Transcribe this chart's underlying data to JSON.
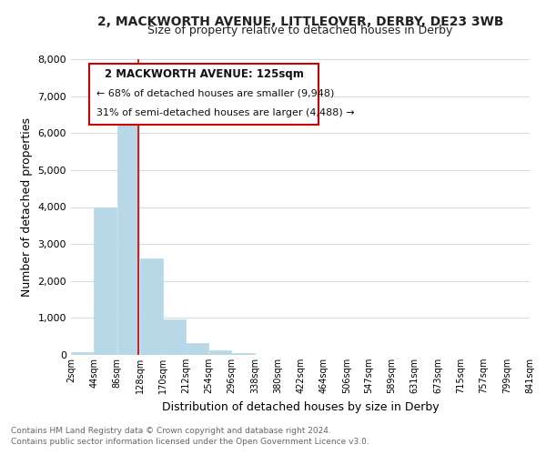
{
  "title": "2, MACKWORTH AVENUE, LITTLEOVER, DERBY, DE23 3WB",
  "subtitle": "Size of property relative to detached houses in Derby",
  "xlabel": "Distribution of detached houses by size in Derby",
  "ylabel": "Number of detached properties",
  "footnote1": "Contains HM Land Registry data © Crown copyright and database right 2024.",
  "footnote2": "Contains public sector information licensed under the Open Government Licence v3.0.",
  "bin_edges": [
    2,
    44,
    86,
    128,
    170,
    212,
    254,
    296,
    338,
    380,
    422,
    464,
    506,
    547,
    589,
    631,
    673,
    715,
    757,
    799,
    841
  ],
  "bar_heights": [
    70,
    4000,
    6600,
    2600,
    950,
    330,
    130,
    50,
    0,
    0,
    0,
    0,
    0,
    0,
    0,
    0,
    0,
    0,
    0,
    0
  ],
  "bar_color": "#b8d8e8",
  "property_line_x": 125,
  "property_line_color": "#cc0000",
  "ylim": [
    0,
    8000
  ],
  "yticks": [
    0,
    1000,
    2000,
    3000,
    4000,
    5000,
    6000,
    7000,
    8000
  ],
  "annotation_title": "2 MACKWORTH AVENUE: 125sqm",
  "annotation_line1": "← 68% of detached houses are smaller (9,948)",
  "annotation_line2": "31% of semi-detached houses are larger (4,488) →",
  "bg_color": "#ffffff",
  "plot_bg_color": "#ffffff",
  "grid_color": "#d0dce8"
}
